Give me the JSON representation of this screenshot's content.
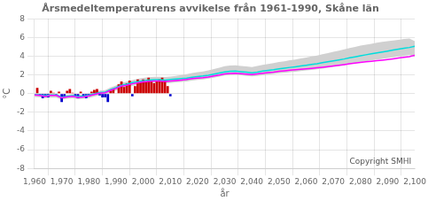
{
  "chart_data": {
    "type": "bar",
    "title": "Årsmedeltemperaturens avvikelse från 1961-1990, Skåne län",
    "xlabel": "år",
    "ylabel": "°C",
    "annotation": "Copyright SMHI",
    "xlim": [
      1960,
      2100
    ],
    "ylim": [
      -8,
      8
    ],
    "xticks": [
      1960,
      1970,
      1980,
      1990,
      2000,
      2010,
      2020,
      2030,
      2040,
      2050,
      2060,
      2070,
      2080,
      2090,
      2100
    ],
    "yticks": [
      -8,
      -6,
      -4,
      -2,
      0,
      2,
      4,
      6,
      8
    ],
    "grid": true,
    "series": [
      {
        "type": "band",
        "color": "#d0d0d0",
        "x": [
          1960,
          1962,
          1964,
          1966,
          1968,
          1970,
          1972,
          1974,
          1976,
          1978,
          1980,
          1982,
          1984,
          1986,
          1988,
          1990,
          1992,
          1994,
          1996,
          1998,
          2000,
          2002,
          2004,
          2006,
          2008,
          2010,
          2012,
          2014,
          2016,
          2018,
          2020,
          2022,
          2024,
          2026,
          2028,
          2030,
          2032,
          2034,
          2036,
          2038,
          2040,
          2042,
          2044,
          2046,
          2048,
          2050,
          2052,
          2054,
          2056,
          2058,
          2060,
          2062,
          2064,
          2066,
          2068,
          2070,
          2072,
          2074,
          2076,
          2078,
          2080,
          2082,
          2084,
          2086,
          2088,
          2090,
          2092,
          2094,
          2096,
          2098,
          2100
        ],
        "lower": [
          -0.35,
          -0.38,
          -0.48,
          -0.42,
          -0.42,
          -0.65,
          -0.55,
          -0.5,
          -0.6,
          -0.55,
          -0.47,
          -0.32,
          -0.17,
          -0.12,
          0.12,
          0.32,
          0.57,
          0.68,
          0.83,
          0.93,
          1.03,
          1.09,
          1.14,
          1.14,
          1.1,
          1.14,
          1.2,
          1.26,
          1.3,
          1.4,
          1.46,
          1.51,
          1.6,
          1.71,
          1.82,
          1.94,
          1.99,
          2.02,
          1.96,
          1.9,
          1.84,
          1.9,
          1.97,
          2.04,
          2.1,
          2.18,
          2.23,
          2.29,
          2.35,
          2.41,
          2.47,
          2.53,
          2.6,
          2.68,
          2.76,
          2.85,
          2.94,
          3.03,
          3.14,
          3.25,
          3.36,
          3.45,
          3.54,
          3.63,
          3.72,
          3.8,
          3.88,
          3.96,
          4.04,
          4.12,
          3.9
        ],
        "upper": [
          -0.0,
          -0.02,
          -0.08,
          -0.03,
          -0.02,
          -0.23,
          -0.12,
          -0.05,
          -0.15,
          -0.1,
          0.0,
          0.16,
          0.32,
          0.38,
          0.65,
          0.88,
          1.15,
          1.28,
          1.45,
          1.57,
          1.68,
          1.75,
          1.8,
          1.8,
          1.76,
          1.82,
          1.9,
          1.98,
          2.07,
          2.2,
          2.28,
          2.36,
          2.48,
          2.62,
          2.76,
          2.92,
          2.99,
          3.02,
          2.96,
          2.9,
          2.84,
          2.95,
          3.07,
          3.17,
          3.25,
          3.37,
          3.46,
          3.56,
          3.65,
          3.75,
          3.85,
          3.96,
          4.07,
          4.2,
          4.33,
          4.46,
          4.59,
          4.72,
          4.87,
          5.0,
          5.13,
          5.23,
          5.33,
          5.43,
          5.53,
          5.6,
          5.67,
          5.75,
          5.83,
          5.9,
          5.6
        ]
      },
      {
        "type": "bar",
        "x": [
          1961,
          1962,
          1963,
          1964,
          1965,
          1966,
          1967,
          1968,
          1969,
          1970,
          1971,
          1972,
          1973,
          1974,
          1975,
          1976,
          1977,
          1978,
          1979,
          1980,
          1981,
          1982,
          1983,
          1984,
          1985,
          1986,
          1987,
          1988,
          1989,
          1990,
          1991,
          1992,
          1993,
          1994,
          1995,
          1996,
          1997,
          1998,
          1999,
          2000,
          2001,
          2002,
          2003,
          2004,
          2005,
          2006,
          2007,
          2008,
          2009,
          2010
        ],
        "values": [
          0.6,
          -0.2,
          -0.5,
          -0.3,
          -0.4,
          0.3,
          0.1,
          -0.1,
          0.2,
          -0.9,
          -0.4,
          0.3,
          0.5,
          0.1,
          -0.3,
          -0.5,
          0.2,
          -0.3,
          -0.5,
          -0.3,
          0.2,
          0.4,
          0.5,
          -0.2,
          -0.4,
          -0.4,
          -0.9,
          0.3,
          0.5,
          0.0,
          1.0,
          1.3,
          0.7,
          1.1,
          1.4,
          -0.3,
          0.8,
          1.5,
          1.2,
          1.5,
          1.3,
          1.7,
          1.4,
          1.1,
          1.3,
          1.5,
          1.7,
          1.4,
          0.8,
          -0.3
        ],
        "colors": [
          "#cc0000",
          "#0000cc",
          "#0000cc",
          "#0000cc",
          "#0000cc",
          "#cc0000",
          "#cc0000",
          "#0000cc",
          "#cc0000",
          "#0000cc",
          "#0000cc",
          "#cc0000",
          "#cc0000",
          "#cc0000",
          "#0000cc",
          "#0000cc",
          "#cc0000",
          "#0000cc",
          "#0000cc",
          "#0000cc",
          "#cc0000",
          "#cc0000",
          "#cc0000",
          "#0000cc",
          "#0000cc",
          "#0000cc",
          "#0000cc",
          "#cc0000",
          "#cc0000",
          "#cc0000",
          "#cc0000",
          "#cc0000",
          "#cc0000",
          "#cc0000",
          "#cc0000",
          "#0000cc",
          "#cc0000",
          "#cc0000",
          "#cc0000",
          "#cc0000",
          "#cc0000",
          "#cc0000",
          "#cc0000",
          "#cc0000",
          "#cc0000",
          "#cc0000",
          "#cc0000",
          "#cc0000",
          "#cc0000",
          "#0000cc"
        ]
      },
      {
        "type": "line",
        "color": "#00dddd",
        "x": [
          1960,
          1962,
          1964,
          1966,
          1968,
          1970,
          1972,
          1974,
          1976,
          1978,
          1980,
          1982,
          1984,
          1986,
          1988,
          1990,
          1992,
          1994,
          1996,
          1998,
          2000,
          2002,
          2004,
          2006,
          2008,
          2010,
          2012,
          2014,
          2016,
          2018,
          2020,
          2022,
          2024,
          2026,
          2028,
          2030,
          2032,
          2034,
          2036,
          2038,
          2040,
          2042,
          2044,
          2046,
          2048,
          2050,
          2052,
          2054,
          2056,
          2058,
          2060,
          2062,
          2064,
          2066,
          2068,
          2070,
          2072,
          2074,
          2076,
          2078,
          2080,
          2082,
          2084,
          2086,
          2088,
          2090,
          2092,
          2094,
          2096,
          2098,
          2100
        ],
        "values": [
          -0.1,
          -0.15,
          -0.22,
          -0.15,
          -0.15,
          -0.38,
          -0.28,
          -0.22,
          -0.32,
          -0.27,
          -0.17,
          -0.02,
          0.12,
          0.17,
          0.43,
          0.65,
          0.9,
          1.02,
          1.18,
          1.28,
          1.38,
          1.44,
          1.49,
          1.49,
          1.45,
          1.5,
          1.55,
          1.6,
          1.65,
          1.75,
          1.82,
          1.88,
          1.97,
          2.08,
          2.2,
          2.32,
          2.38,
          2.4,
          2.34,
          2.28,
          2.22,
          2.3,
          2.4,
          2.48,
          2.55,
          2.65,
          2.72,
          2.8,
          2.87,
          2.95,
          3.03,
          3.12,
          3.2,
          3.3,
          3.4,
          3.5,
          3.6,
          3.7,
          3.82,
          3.93,
          4.05,
          4.15,
          4.25,
          4.35,
          4.45,
          4.55,
          4.65,
          4.75,
          4.85,
          4.93,
          5.05
        ]
      },
      {
        "type": "line",
        "color": "#ff00ff",
        "x": [
          1960,
          1962,
          1964,
          1966,
          1968,
          1970,
          1972,
          1974,
          1976,
          1978,
          1980,
          1982,
          1984,
          1986,
          1988,
          1990,
          1992,
          1994,
          1996,
          1998,
          2000,
          2002,
          2004,
          2006,
          2008,
          2010,
          2012,
          2014,
          2016,
          2018,
          2020,
          2022,
          2024,
          2026,
          2028,
          2030,
          2032,
          2034,
          2036,
          2038,
          2040,
          2042,
          2044,
          2046,
          2048,
          2050,
          2052,
          2054,
          2056,
          2058,
          2060,
          2062,
          2064,
          2066,
          2068,
          2070,
          2072,
          2074,
          2076,
          2078,
          2080,
          2082,
          2084,
          2086,
          2088,
          2090,
          2092,
          2094,
          2096,
          2098,
          2100
        ],
        "values": [
          -0.15,
          -0.2,
          -0.3,
          -0.2,
          -0.2,
          -0.45,
          -0.35,
          -0.3,
          -0.4,
          -0.35,
          -0.25,
          -0.1,
          0.05,
          0.1,
          0.35,
          0.55,
          0.8,
          0.9,
          1.05,
          1.15,
          1.25,
          1.3,
          1.35,
          1.35,
          1.3,
          1.35,
          1.4,
          1.45,
          1.5,
          1.6,
          1.65,
          1.7,
          1.78,
          1.88,
          1.98,
          2.1,
          2.15,
          2.18,
          2.12,
          2.07,
          2.02,
          2.1,
          2.18,
          2.25,
          2.3,
          2.38,
          2.44,
          2.5,
          2.55,
          2.6,
          2.65,
          2.7,
          2.76,
          2.82,
          2.88,
          2.95,
          3.02,
          3.1,
          3.18,
          3.26,
          3.34,
          3.4,
          3.46,
          3.52,
          3.58,
          3.65,
          3.72,
          3.8,
          3.88,
          3.95,
          4.1
        ]
      }
    ]
  }
}
